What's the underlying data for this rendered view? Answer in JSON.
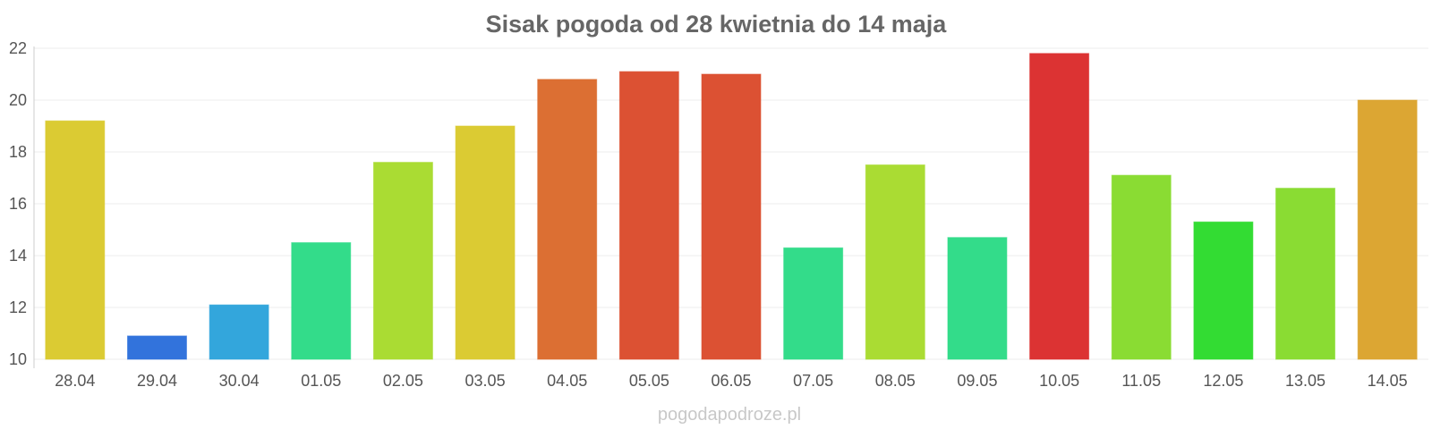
{
  "watermark": "pogodapodroze.pl",
  "chart_data": {
    "type": "bar",
    "title": "Sisak pogoda od 28 kwietnia do 14 maja",
    "xlabel": "",
    "ylabel": "",
    "ylim": [
      10,
      22
    ],
    "yticks": [
      10,
      12,
      14,
      16,
      18,
      20,
      22
    ],
    "grid": true,
    "categories": [
      "28.04",
      "29.04",
      "30.04",
      "01.05",
      "02.05",
      "03.05",
      "04.05",
      "05.05",
      "06.05",
      "07.05",
      "08.05",
      "09.05",
      "10.05",
      "11.05",
      "12.05",
      "13.05",
      "14.05"
    ],
    "values": [
      19.2,
      10.9,
      12.1,
      14.5,
      17.6,
      19.0,
      20.8,
      21.1,
      21.0,
      14.3,
      17.5,
      14.7,
      21.8,
      17.1,
      15.3,
      16.6,
      20.0
    ],
    "colors": [
      "#dbcb33",
      "#3273dc",
      "#33a6dc",
      "#33dc8a",
      "#aadc33",
      "#dbcb33",
      "#dc6f33",
      "#dc5133",
      "#dc5133",
      "#33dc8a",
      "#aadc33",
      "#33dc8a",
      "#dc3333",
      "#8adc33",
      "#33dc33",
      "#8adc33",
      "#dca633"
    ]
  }
}
